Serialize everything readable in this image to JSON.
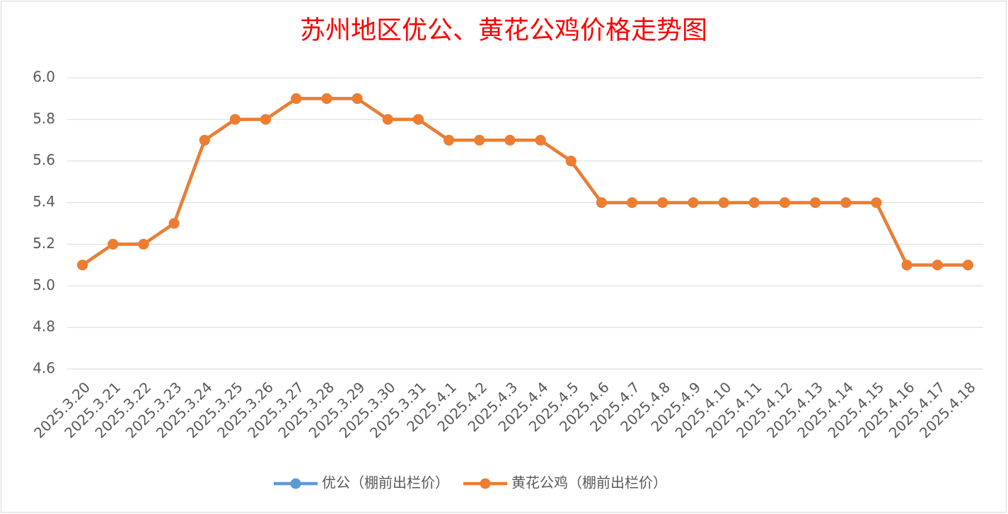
{
  "chart_data": {
    "type": "line",
    "title": "苏州地区优公、黄花公鸡价格走势图",
    "categories": [
      "2025.3.20",
      "2025.3.21",
      "2025.3.22",
      "2025.3.23",
      "2025.3.24",
      "2025.3.25",
      "2025.3.26",
      "2025.3.27",
      "2025.3.28",
      "2025.3.29",
      "2025.3.30",
      "2025.3.31",
      "2025.4.1",
      "2025.4.2",
      "2025.4.3",
      "2025.4.4",
      "2025.4.5",
      "2025.4.6",
      "2025.4.7",
      "2025.4.8",
      "2025.4.9",
      "2025.4.10",
      "2025.4.11",
      "2025.4.12",
      "2025.4.13",
      "2025.4.14",
      "2025.4.15",
      "2025.4.16",
      "2025.4.17",
      "2025.4.18"
    ],
    "series": [
      {
        "name": "优公（棚前出栏价）",
        "color": "#5b9bd5",
        "values": [
          5.1,
          5.2,
          5.2,
          5.3,
          5.7,
          5.8,
          5.8,
          5.9,
          5.9,
          5.9,
          5.8,
          5.8,
          5.7,
          5.7,
          5.7,
          5.7,
          5.6,
          5.4,
          5.4,
          5.4,
          5.4,
          5.4,
          5.4,
          5.4,
          5.4,
          5.4,
          5.4,
          5.1,
          5.1,
          5.1
        ]
      },
      {
        "name": "黄花公鸡（棚前出栏价）",
        "color": "#ed7d31",
        "values": [
          5.1,
          5.2,
          5.2,
          5.3,
          5.7,
          5.8,
          5.8,
          5.9,
          5.9,
          5.9,
          5.8,
          5.8,
          5.7,
          5.7,
          5.7,
          5.7,
          5.6,
          5.4,
          5.4,
          5.4,
          5.4,
          5.4,
          5.4,
          5.4,
          5.4,
          5.4,
          5.4,
          5.1,
          5.1,
          5.1
        ]
      }
    ],
    "ylim": [
      4.6,
      6.0
    ],
    "yticks": [
      4.6,
      4.8,
      {
        "value": 5,
        "label": "5.0"
      },
      5.2,
      5.4,
      5.6,
      5.8,
      {
        "value": 6,
        "label": "6.0"
      }
    ],
    "grid": true,
    "legend": "bottom"
  }
}
